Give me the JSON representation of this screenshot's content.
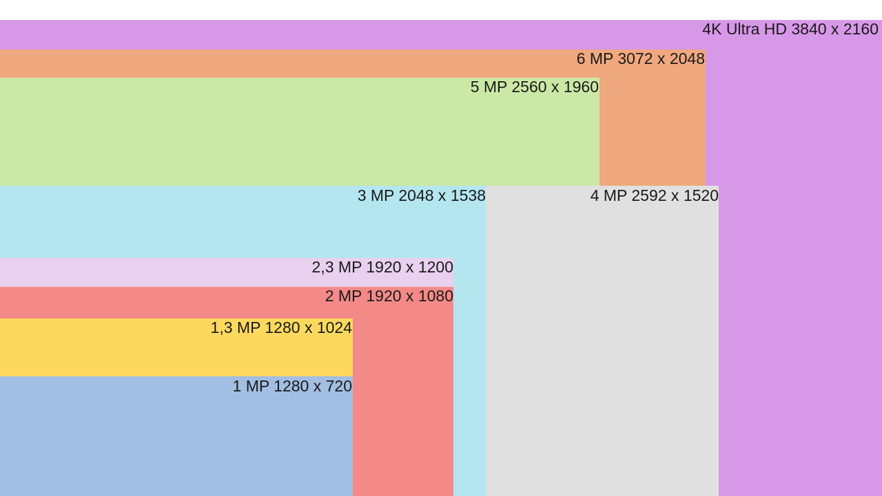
{
  "resolutions": [
    {
      "label": "4K Ultra HD 3840 x 2160"
    },
    {
      "label": "6 MP 3072 x 2048"
    },
    {
      "label": "5 MP 2560 x 1960"
    },
    {
      "label": "4 MP 2592 x 1520"
    },
    {
      "label": "3 MP 2048 x 1538"
    },
    {
      "label": "2,3 MP 1920 x 1200"
    },
    {
      "label": "2 MP 1920 x 1080"
    },
    {
      "label": "1,3 MP 1280 x 1024"
    },
    {
      "label": "1 MP 1280 x 720"
    }
  ]
}
